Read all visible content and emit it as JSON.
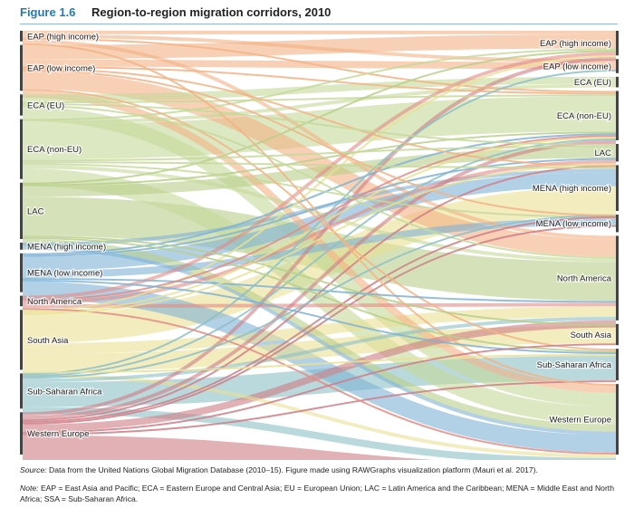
{
  "figure": {
    "number": "Figure 1.6",
    "title": "Region-to-region migration corridors, 2010"
  },
  "source": {
    "label": "Source:",
    "text": "Data from the United Nations Global Migration Database (2010–15). Figure made using RAWGraphs visualization platform (Mauri et al. 2017)."
  },
  "note": {
    "label": "Note:",
    "text": "EAP = East Asia and Pacific; ECA = Eastern Europe and Central Asia; EU = European Union; LAC = Latin America and the Caribbean; MENA = Middle East and North Africa; SSA = Sub-Saharan Africa."
  },
  "chart_data": {
    "type": "sankey",
    "title": "Region-to-region migration corridors, 2010",
    "units": "relative scale",
    "source_nodes": [
      {
        "name": "EAP (high income)",
        "total": 3,
        "color": "#f4b183"
      },
      {
        "name": "EAP (low income)",
        "total": 13,
        "color": "#f4b183"
      },
      {
        "name": "ECA (EU)",
        "total": 6,
        "color": "#c5d99a"
      },
      {
        "name": "ECA (non-EU)",
        "total": 17,
        "color": "#c5d99a"
      },
      {
        "name": "LAC",
        "total": 16,
        "color": "#b9cf8a"
      },
      {
        "name": "MENA (high income)",
        "total": 2,
        "color": "#7fb3d5"
      },
      {
        "name": "MENA (low income)",
        "total": 11,
        "color": "#7fb3d5"
      },
      {
        "name": "North America",
        "total": 3,
        "color": "#e58b84"
      },
      {
        "name": "South Asia",
        "total": 17,
        "color": "#e9e094"
      },
      {
        "name": "Sub-Saharan Africa",
        "total": 10,
        "color": "#8cc0c6"
      },
      {
        "name": "Western Europe",
        "total": 12,
        "color": "#cf7d86"
      }
    ],
    "target_nodes": [
      {
        "name": "EAP (high income)",
        "total": 7
      },
      {
        "name": "EAP (low income)",
        "total": 4
      },
      {
        "name": "ECA (EU)",
        "total": 3
      },
      {
        "name": "ECA (non-EU)",
        "total": 14
      },
      {
        "name": "LAC",
        "total": 5
      },
      {
        "name": "MENA (high income)",
        "total": 13
      },
      {
        "name": "MENA (low income)",
        "total": 5
      },
      {
        "name": "North America",
        "total": 24
      },
      {
        "name": "South Asia",
        "total": 6
      },
      {
        "name": "Sub-Saharan Africa",
        "total": 9
      },
      {
        "name": "Western Europe",
        "total": 20
      }
    ],
    "flows": [
      {
        "from": "EAP (high income)",
        "to": "EAP (high income)",
        "value": 1
      },
      {
        "from": "EAP (high income)",
        "to": "EAP (low income)",
        "value": 1
      },
      {
        "from": "EAP (high income)",
        "to": "North America",
        "value": 1
      },
      {
        "from": "EAP (low income)",
        "to": "EAP (high income)",
        "value": 4
      },
      {
        "from": "EAP (low income)",
        "to": "EAP (low income)",
        "value": 2
      },
      {
        "from": "EAP (low income)",
        "to": "North America",
        "value": 5
      },
      {
        "from": "EAP (low income)",
        "to": "Western Europe",
        "value": 2
      },
      {
        "from": "ECA (EU)",
        "to": "ECA (EU)",
        "value": 2
      },
      {
        "from": "ECA (EU)",
        "to": "Western Europe",
        "value": 4
      },
      {
        "from": "ECA (non-EU)",
        "to": "ECA (EU)",
        "value": 1
      },
      {
        "from": "ECA (non-EU)",
        "to": "ECA (non-EU)",
        "value": 10
      },
      {
        "from": "ECA (non-EU)",
        "to": "Western Europe",
        "value": 5
      },
      {
        "from": "ECA (non-EU)",
        "to": "North America",
        "value": 1
      },
      {
        "from": "LAC",
        "to": "LAC",
        "value": 3
      },
      {
        "from": "LAC",
        "to": "North America",
        "value": 11
      },
      {
        "from": "LAC",
        "to": "Western Europe",
        "value": 2
      },
      {
        "from": "MENA (high income)",
        "to": "MENA (high income)",
        "value": 1
      },
      {
        "from": "MENA (high income)",
        "to": "Western Europe",
        "value": 1
      },
      {
        "from": "MENA (low income)",
        "to": "MENA (high income)",
        "value": 4
      },
      {
        "from": "MENA (low income)",
        "to": "MENA (low income)",
        "value": 2
      },
      {
        "from": "MENA (low income)",
        "to": "Western Europe",
        "value": 5
      },
      {
        "from": "North America",
        "to": "LAC",
        "value": 1
      },
      {
        "from": "North America",
        "to": "North America",
        "value": 1
      },
      {
        "from": "North America",
        "to": "EAP (high income)",
        "value": 1
      },
      {
        "from": "South Asia",
        "to": "MENA (high income)",
        "value": 8
      },
      {
        "from": "South Asia",
        "to": "South Asia",
        "value": 5
      },
      {
        "from": "South Asia",
        "to": "North America",
        "value": 3
      },
      {
        "from": "South Asia",
        "to": "Western Europe",
        "value": 1
      },
      {
        "from": "Sub-Saharan Africa",
        "to": "Sub-Saharan Africa",
        "value": 7
      },
      {
        "from": "Sub-Saharan Africa",
        "to": "Western Europe",
        "value": 2
      },
      {
        "from": "Sub-Saharan Africa",
        "to": "North America",
        "value": 1
      },
      {
        "from": "Western Europe",
        "to": "Western Europe",
        "value": 8
      },
      {
        "from": "Western Europe",
        "to": "North America",
        "value": 2
      },
      {
        "from": "Western Europe",
        "to": "ECA (non-EU)",
        "value": 1
      },
      {
        "from": "Western Europe",
        "to": "EAP (high income)",
        "value": 1
      },
      {
        "from": "EAP (low income)",
        "to": "ECA (non-EU)",
        "value": 0.5
      },
      {
        "from": "LAC",
        "to": "ECA (non-EU)",
        "value": 0.5
      },
      {
        "from": "South Asia",
        "to": "ECA (non-EU)",
        "value": 0.5
      },
      {
        "from": "Sub-Saharan Africa",
        "to": "ECA (non-EU)",
        "value": 0.5
      },
      {
        "from": "MENA (low income)",
        "to": "ECA (non-EU)",
        "value": 0.5
      },
      {
        "from": "ECA (EU)",
        "to": "ECA (non-EU)",
        "value": 0.5
      },
      {
        "from": "EAP (high income)",
        "to": "ECA (non-EU)",
        "value": 0.5
      },
      {
        "from": "ECA (non-EU)",
        "to": "EAP (high income)",
        "value": 0.5
      },
      {
        "from": "ECA (non-EU)",
        "to": "MENA (low income)",
        "value": 0.5
      },
      {
        "from": "LAC",
        "to": "EAP (high income)",
        "value": 0.5
      },
      {
        "from": "South Asia",
        "to": "EAP (high income)",
        "value": 0.5
      },
      {
        "from": "Sub-Saharan Africa",
        "to": "EAP (low income)",
        "value": 0.5
      },
      {
        "from": "MENA (low income)",
        "to": "LAC",
        "value": 0.5
      },
      {
        "from": "Western Europe",
        "to": "LAC",
        "value": 0.5
      },
      {
        "from": "Western Europe",
        "to": "MENA (low income)",
        "value": 0.5
      },
      {
        "from": "Western Europe",
        "to": "MENA (high income)",
        "value": 0.5
      },
      {
        "from": "Western Europe",
        "to": "Sub-Saharan Africa",
        "value": 0.5
      },
      {
        "from": "North America",
        "to": "Western Europe",
        "value": 0.5
      },
      {
        "from": "EAP (low income)",
        "to": "Sub-Saharan Africa",
        "value": 0.5
      },
      {
        "from": "ECA (EU)",
        "to": "North America",
        "value": 0.5
      },
      {
        "from": "LAC",
        "to": "South Asia",
        "value": 0.5
      },
      {
        "from": "EAP (high income)",
        "to": "Western Europe",
        "value": 0.5
      },
      {
        "from": "MENA (low income)",
        "to": "North America",
        "value": 0.5
      },
      {
        "from": "Sub-Saharan Africa",
        "to": "MENA (high income)",
        "value": 0.5
      },
      {
        "from": "ECA (non-EU)",
        "to": "MENA (high income)",
        "value": 0.5
      },
      {
        "from": "South Asia",
        "to": "Sub-Saharan Africa",
        "value": 0.5
      },
      {
        "from": "EAP (low income)",
        "to": "MENA (high income)",
        "value": 0.5
      },
      {
        "from": "LAC",
        "to": "Sub-Saharan Africa",
        "value": 0.5
      },
      {
        "from": "North America",
        "to": "ECA (non-EU)",
        "value": 0.5
      },
      {
        "from": "ECA (EU)",
        "to": "LAC",
        "value": 0.5
      },
      {
        "from": "MENA (low income)",
        "to": "Sub-Saharan Africa",
        "value": 0.5
      },
      {
        "from": "Western Europe",
        "to": "South Asia",
        "value": 0.5
      },
      {
        "from": "ECA (non-EU)",
        "to": "LAC",
        "value": 0.5
      },
      {
        "from": "EAP (low income)",
        "to": "MENA (low income)",
        "value": 0.5
      },
      {
        "from": "South Asia",
        "to": "LAC",
        "value": 0.5
      }
    ]
  }
}
